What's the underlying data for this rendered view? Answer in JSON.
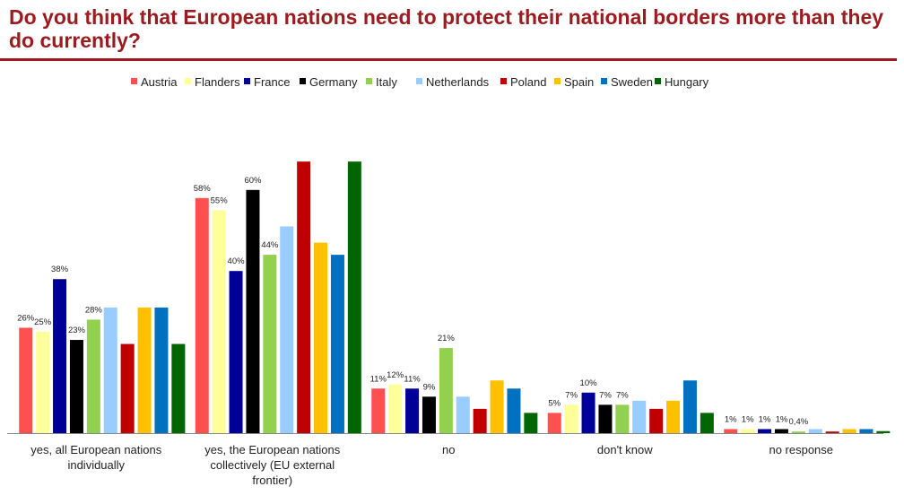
{
  "chart_data": {
    "type": "bar",
    "title": "Do you think that European nations need to protect their national borders more than they do currently?",
    "categories": [
      [
        "yes, all European nations",
        "individually"
      ],
      [
        "yes, the European nations",
        "collectively (EU external",
        "frontier)"
      ],
      [
        "no"
      ],
      [
        "don't know"
      ],
      [
        "no response"
      ]
    ],
    "legend_position": "top",
    "grid": false,
    "ylim": [
      0,
      70
    ],
    "series": [
      {
        "name": "Austria",
        "color": "#ff5050",
        "values": [
          26,
          58,
          11,
          5,
          1
        ],
        "labels": [
          "26%",
          "58%",
          "11%",
          "5%",
          "1%"
        ]
      },
      {
        "name": "Flanders",
        "color": "#ffff99",
        "values": [
          25,
          55,
          12,
          7,
          1
        ],
        "labels": [
          "25%",
          "55%",
          "12%",
          "7%",
          "1%"
        ]
      },
      {
        "name": "France",
        "color": "#000099",
        "values": [
          38,
          40,
          11,
          10,
          1
        ],
        "labels": [
          "38%",
          "40%",
          "11%",
          "10%",
          "1%"
        ]
      },
      {
        "name": "Germany",
        "color": "#000000",
        "values": [
          23,
          60,
          9,
          7,
          1
        ],
        "labels": [
          "23%",
          "60%",
          "9%",
          "7%",
          "1%"
        ]
      },
      {
        "name": "Italy",
        "color": "#92d050",
        "values": [
          28,
          44,
          21,
          7,
          0.4
        ],
        "labels": [
          "28%",
          "44%",
          "21%",
          "7%",
          "0,4%"
        ]
      },
      {
        "name": "Netherlands",
        "color": "#99ccff",
        "values": [
          31,
          51,
          9,
          8,
          1
        ],
        "labels": [
          "31%",
          "51%",
          "9%",
          "8%",
          "1%"
        ]
      },
      {
        "name": "Poland",
        "color": "#c00000",
        "values": [
          22,
          67,
          6,
          6,
          0.4
        ],
        "labels": [
          "22%",
          "67%",
          "6%",
          "6%",
          "0,4%"
        ]
      },
      {
        "name": "Spain",
        "color": "#ffc000",
        "values": [
          31,
          47,
          13,
          8,
          1
        ],
        "labels": [
          "31%",
          "47%",
          "13%",
          "8%",
          "1%"
        ]
      },
      {
        "name": "Sweden",
        "color": "#0070c0",
        "values": [
          31,
          44,
          11,
          13,
          1
        ],
        "labels": [
          "31%",
          "44%",
          "11%",
          "13%",
          "1%"
        ]
      },
      {
        "name": "Hungary",
        "color": "#006600",
        "values": [
          22,
          67,
          5,
          5,
          0.5
        ],
        "labels": [
          "22%",
          "67%",
          "5%",
          "5%",
          "0,5%"
        ]
      }
    ]
  }
}
